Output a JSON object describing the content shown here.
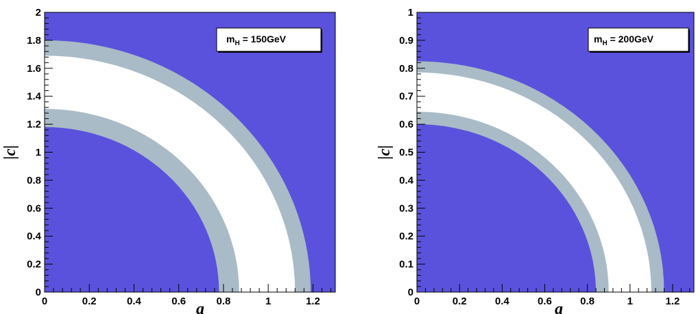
{
  "chart_data": [
    {
      "type": "area",
      "title": "",
      "xlabel": "a",
      "ylabel": "|c|",
      "xlim": [
        0,
        1.3
      ],
      "ylim": [
        0,
        2
      ],
      "xticks": [
        0,
        0.2,
        0.4,
        0.6,
        0.8,
        1,
        1.2
      ],
      "xtick_labels": [
        "0",
        "0.2",
        "0.4",
        "0.6",
        "0.8",
        "1",
        "1.2"
      ],
      "yticks": [
        0,
        0.2,
        0.4,
        0.6,
        0.8,
        1,
        1.2,
        1.4,
        1.6,
        1.8,
        2
      ],
      "ytick_labels": [
        "0",
        "0.2",
        "0.4",
        "0.6",
        "0.8",
        "1",
        "1.2",
        "1.4",
        "1.6",
        "1.8",
        "2"
      ],
      "legend": {
        "text_main": "m",
        "text_sub": "H",
        "text_tail": " = 150GeV"
      },
      "background_color": "#5a52dc",
      "band_color": "#a9bbc6",
      "allowed_color": "#ffffff",
      "regions": [
        {
          "r_outer": 1.19,
          "r_inner": 1.12,
          "y_outer": 1.8,
          "y_inner": 1.69,
          "color": "#a9bbc6"
        },
        {
          "r_outer": 1.12,
          "r_inner": 0.87,
          "y_outer": 1.69,
          "y_inner": 1.31,
          "color": "#ffffff"
        },
        {
          "r_outer": 0.87,
          "r_inner": 0.78,
          "y_outer": 1.31,
          "y_inner": 1.18,
          "color": "#a9bbc6"
        }
      ]
    },
    {
      "type": "area",
      "title": "",
      "xlabel": "a",
      "ylabel": "|c|",
      "xlim": [
        0,
        1.3
      ],
      "ylim": [
        0,
        1
      ],
      "xticks": [
        0,
        0.2,
        0.4,
        0.6,
        0.8,
        1,
        1.2
      ],
      "xtick_labels": [
        "0",
        "0.2",
        "0.4",
        "0.6",
        "0.8",
        "1",
        "1.2"
      ],
      "yticks": [
        0,
        0.1,
        0.2,
        0.3,
        0.4,
        0.5,
        0.6,
        0.7,
        0.8,
        0.9,
        1
      ],
      "ytick_labels": [
        "0",
        "0.1",
        "0.2",
        "0.3",
        "0.4",
        "0.5",
        "0.6",
        "0.7",
        "0.8",
        "0.9",
        "1"
      ],
      "legend": {
        "text_main": "m",
        "text_sub": "H",
        "text_tail": " = 200GeV"
      },
      "background_color": "#5a52dc",
      "band_color": "#a9bbc6",
      "allowed_color": "#ffffff",
      "regions": [
        {
          "r_outer": 1.16,
          "r_inner": 1.1,
          "y_outer": 0.825,
          "y_inner": 0.785,
          "color": "#a9bbc6"
        },
        {
          "r_outer": 1.1,
          "r_inner": 0.9,
          "y_outer": 0.785,
          "y_inner": 0.645,
          "color": "#ffffff"
        },
        {
          "r_outer": 0.9,
          "r_inner": 0.84,
          "y_outer": 0.645,
          "y_inner": 0.6,
          "color": "#a9bbc6"
        }
      ]
    }
  ]
}
